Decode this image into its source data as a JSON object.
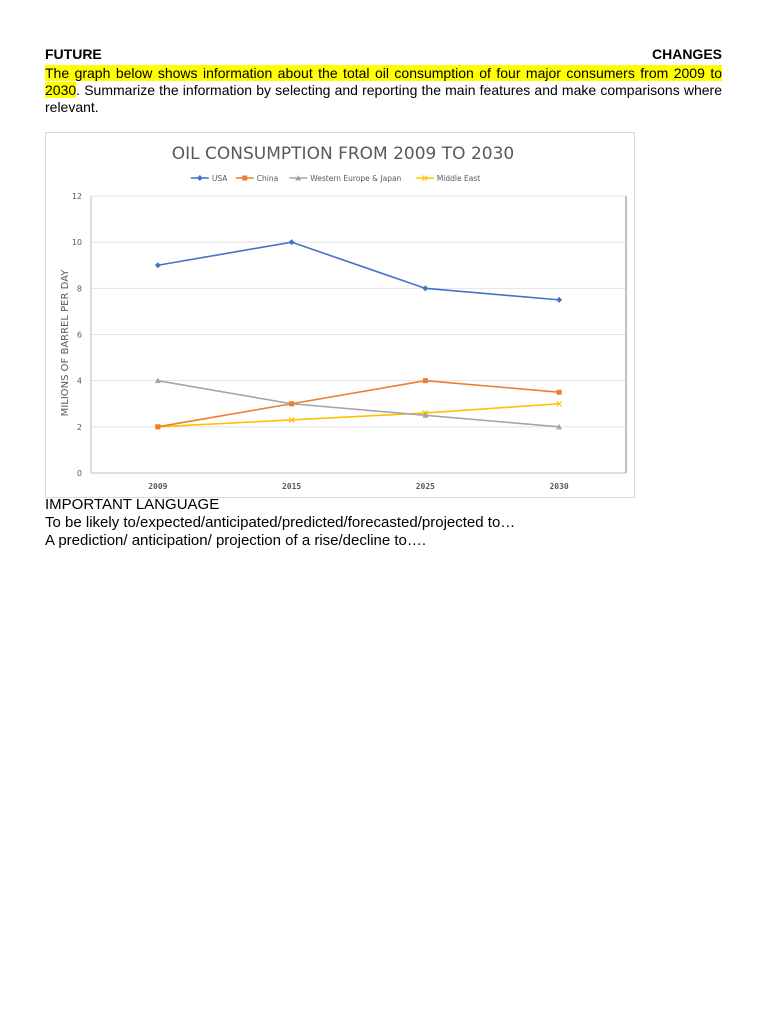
{
  "header": {
    "left": "FUTURE",
    "right": "CHANGES"
  },
  "task": {
    "highlighted": "The graph below shows information about the total oil consumption of four major consumers from 2009 to 2030",
    "rest": ". Summarize the information by selecting and reporting the main features and make comparisons where relevant."
  },
  "chart_data": {
    "type": "line",
    "title": "OIL CONSUMPTION FROM 2009 TO 2030",
    "xlabel": "",
    "ylabel": "MILIONS OF BARREL PER DAY",
    "categories": [
      "2009",
      "2015",
      "2025",
      "2030"
    ],
    "ylim": [
      0,
      12
    ],
    "yticks": [
      0,
      2,
      4,
      6,
      8,
      10,
      12
    ],
    "grid": true,
    "legend_position": "top",
    "series": [
      {
        "name": "USA",
        "values": [
          9,
          10,
          8,
          7.5
        ],
        "color": "#4472c4",
        "marker": "diamond"
      },
      {
        "name": "China",
        "values": [
          2,
          3,
          4,
          3.5
        ],
        "color": "#ed7d31",
        "marker": "square"
      },
      {
        "name": "Western Europe & Japan",
        "values": [
          4,
          3,
          2.5,
          2
        ],
        "color": "#a5a5a5",
        "marker": "triangle"
      },
      {
        "name": "Middle East",
        "values": [
          2,
          2.3,
          2.6,
          3
        ],
        "color": "#ffc000",
        "marker": "x"
      }
    ]
  },
  "language": {
    "title": "IMPORTANT LANGUAGE",
    "line1": "To be likely to/expected/anticipated/predicted/forecasted/projected to…",
    "line2": "A prediction/ anticipation/ projection of a rise/decline to…."
  }
}
